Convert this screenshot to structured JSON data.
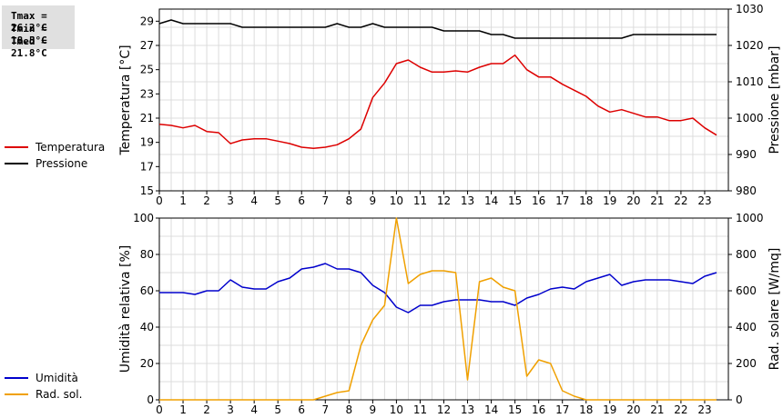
{
  "stats": {
    "tmax": "Tmax = 26.2°C",
    "tmin": "Tmin = 18.5°C",
    "tmed": "Tmed = 21.8°C"
  },
  "chart_data": [
    {
      "type": "line",
      "xlabel": "",
      "xlim": [
        0,
        24
      ],
      "xticks": [
        "0",
        "1",
        "2",
        "3",
        "4",
        "5",
        "6",
        "7",
        "8",
        "9",
        "10",
        "11",
        "12",
        "13",
        "14",
        "15",
        "16",
        "17",
        "18",
        "19",
        "20",
        "21",
        "22",
        "23"
      ],
      "ylabel": "Temperatura [°C]",
      "ylim": [
        15,
        30
      ],
      "yticks": [
        "15",
        "17",
        "19",
        "21",
        "23",
        "25",
        "27",
        "29"
      ],
      "y2label": "Pressione [mbar]",
      "y2lim": [
        980,
        1030
      ],
      "y2ticks": [
        "980",
        "990",
        "1000",
        "1010",
        "1020",
        "1030"
      ],
      "grid": true,
      "legend": "left",
      "series": [
        {
          "name": "Temperatura",
          "color": "#dd0000",
          "axis": "left",
          "x": [
            0,
            0.5,
            1,
            1.5,
            2,
            2.5,
            3,
            3.5,
            4,
            4.5,
            5,
            5.5,
            6,
            6.5,
            7,
            7.5,
            8,
            8.5,
            9,
            9.5,
            10,
            10.5,
            11,
            11.5,
            12,
            12.5,
            13,
            13.5,
            14,
            14.5,
            15,
            15.5,
            16,
            16.5,
            17,
            17.5,
            18,
            18.5,
            19,
            19.5,
            20,
            20.5,
            21,
            21.5,
            22,
            22.5,
            23,
            23.5
          ],
          "y": [
            20.5,
            20.4,
            20.2,
            20.4,
            19.9,
            19.8,
            18.9,
            19.2,
            19.3,
            19.3,
            19.1,
            18.9,
            18.6,
            18.5,
            18.6,
            18.8,
            19.3,
            20.1,
            22.7,
            23.9,
            25.5,
            25.8,
            25.2,
            24.8,
            24.8,
            24.9,
            24.8,
            25.2,
            25.5,
            25.5,
            26.2,
            25.0,
            24.4,
            24.4,
            23.8,
            23.3,
            22.8,
            22.0,
            21.5,
            21.7,
            21.4,
            21.1,
            21.1,
            20.8,
            20.8,
            21.0,
            20.2,
            19.6
          ]
        },
        {
          "name": "Pressione",
          "color": "#000000",
          "axis": "right",
          "x": [
            0,
            0.5,
            1,
            1.5,
            2,
            2.5,
            3,
            3.5,
            4,
            4.5,
            5,
            5.5,
            6,
            6.5,
            7,
            7.5,
            8,
            8.5,
            9,
            9.5,
            10,
            10.5,
            11,
            11.5,
            12,
            12.5,
            13,
            13.5,
            14,
            14.5,
            15,
            15.5,
            16,
            16.5,
            17,
            17.5,
            18,
            18.5,
            19,
            19.5,
            20,
            20.5,
            21,
            21.5,
            22,
            22.5,
            23,
            23.5
          ],
          "y": [
            1026,
            1027,
            1026,
            1026,
            1026,
            1026,
            1026,
            1025,
            1025,
            1025,
            1025,
            1025,
            1025,
            1025,
            1025,
            1026,
            1025,
            1025,
            1026,
            1025,
            1025,
            1025,
            1025,
            1025,
            1024,
            1024,
            1024,
            1024,
            1023,
            1023,
            1022,
            1022,
            1022,
            1022,
            1022,
            1022,
            1022,
            1022,
            1022,
            1022,
            1023,
            1023,
            1023,
            1023,
            1023,
            1023,
            1023,
            1023
          ]
        }
      ]
    },
    {
      "type": "line",
      "xlabel": "",
      "xlim": [
        0,
        24
      ],
      "xticks": [
        "0",
        "1",
        "2",
        "3",
        "4",
        "5",
        "6",
        "7",
        "8",
        "9",
        "10",
        "11",
        "12",
        "13",
        "14",
        "15",
        "16",
        "17",
        "18",
        "19",
        "20",
        "21",
        "22",
        "23"
      ],
      "ylabel": "Umidità relativa [%]",
      "ylim": [
        0,
        100
      ],
      "yticks": [
        "0",
        "20",
        "40",
        "60",
        "80",
        "100"
      ],
      "y2label": "Rad. solare [W/mq]",
      "y2lim": [
        0,
        1000
      ],
      "y2ticks": [
        "0",
        "200",
        "400",
        "600",
        "800",
        "1000"
      ],
      "grid": true,
      "legend": "left",
      "series": [
        {
          "name": "Umidità",
          "color": "#0000cc",
          "axis": "left",
          "x": [
            0,
            0.5,
            1,
            1.5,
            2,
            2.5,
            3,
            3.5,
            4,
            4.5,
            5,
            5.5,
            6,
            6.5,
            7,
            7.5,
            8,
            8.5,
            9,
            9.5,
            10,
            10.5,
            11,
            11.5,
            12,
            12.5,
            13,
            13.5,
            14,
            14.5,
            15,
            15.5,
            16,
            16.5,
            17,
            17.5,
            18,
            18.5,
            19,
            19.5,
            20,
            20.5,
            21,
            21.5,
            22,
            22.5,
            23,
            23.5
          ],
          "y": [
            59,
            59,
            59,
            58,
            60,
            60,
            66,
            62,
            61,
            61,
            65,
            67,
            72,
            73,
            75,
            72,
            72,
            70,
            63,
            59,
            51,
            48,
            52,
            52,
            54,
            55,
            55,
            55,
            54,
            54,
            52,
            56,
            58,
            61,
            62,
            61,
            65,
            67,
            69,
            63,
            65,
            66,
            66,
            66,
            65,
            64,
            68,
            70
          ]
        },
        {
          "name": "Rad. sol.",
          "color": "#f0a000",
          "axis": "right",
          "x": [
            0,
            0.5,
            1,
            1.5,
            2,
            2.5,
            3,
            3.5,
            4,
            4.5,
            5,
            5.5,
            6,
            6.5,
            7,
            7.5,
            8,
            8.5,
            9,
            9.5,
            10,
            10.5,
            11,
            11.5,
            12,
            12.5,
            13,
            13.5,
            14,
            14.5,
            15,
            15.5,
            16,
            16.5,
            17,
            17.5,
            18,
            18.5,
            19,
            19.5,
            20,
            20.5,
            21,
            21.5,
            22,
            22.5,
            23,
            23.5
          ],
          "y": [
            0,
            0,
            0,
            0,
            0,
            0,
            0,
            0,
            0,
            0,
            0,
            0,
            0,
            0,
            20,
            40,
            50,
            300,
            440,
            520,
            1000,
            640,
            690,
            710,
            710,
            700,
            110,
            650,
            670,
            620,
            600,
            130,
            220,
            200,
            50,
            20,
            0,
            0,
            0,
            0,
            0,
            0,
            0,
            0,
            0,
            0,
            0,
            0
          ]
        }
      ]
    }
  ]
}
